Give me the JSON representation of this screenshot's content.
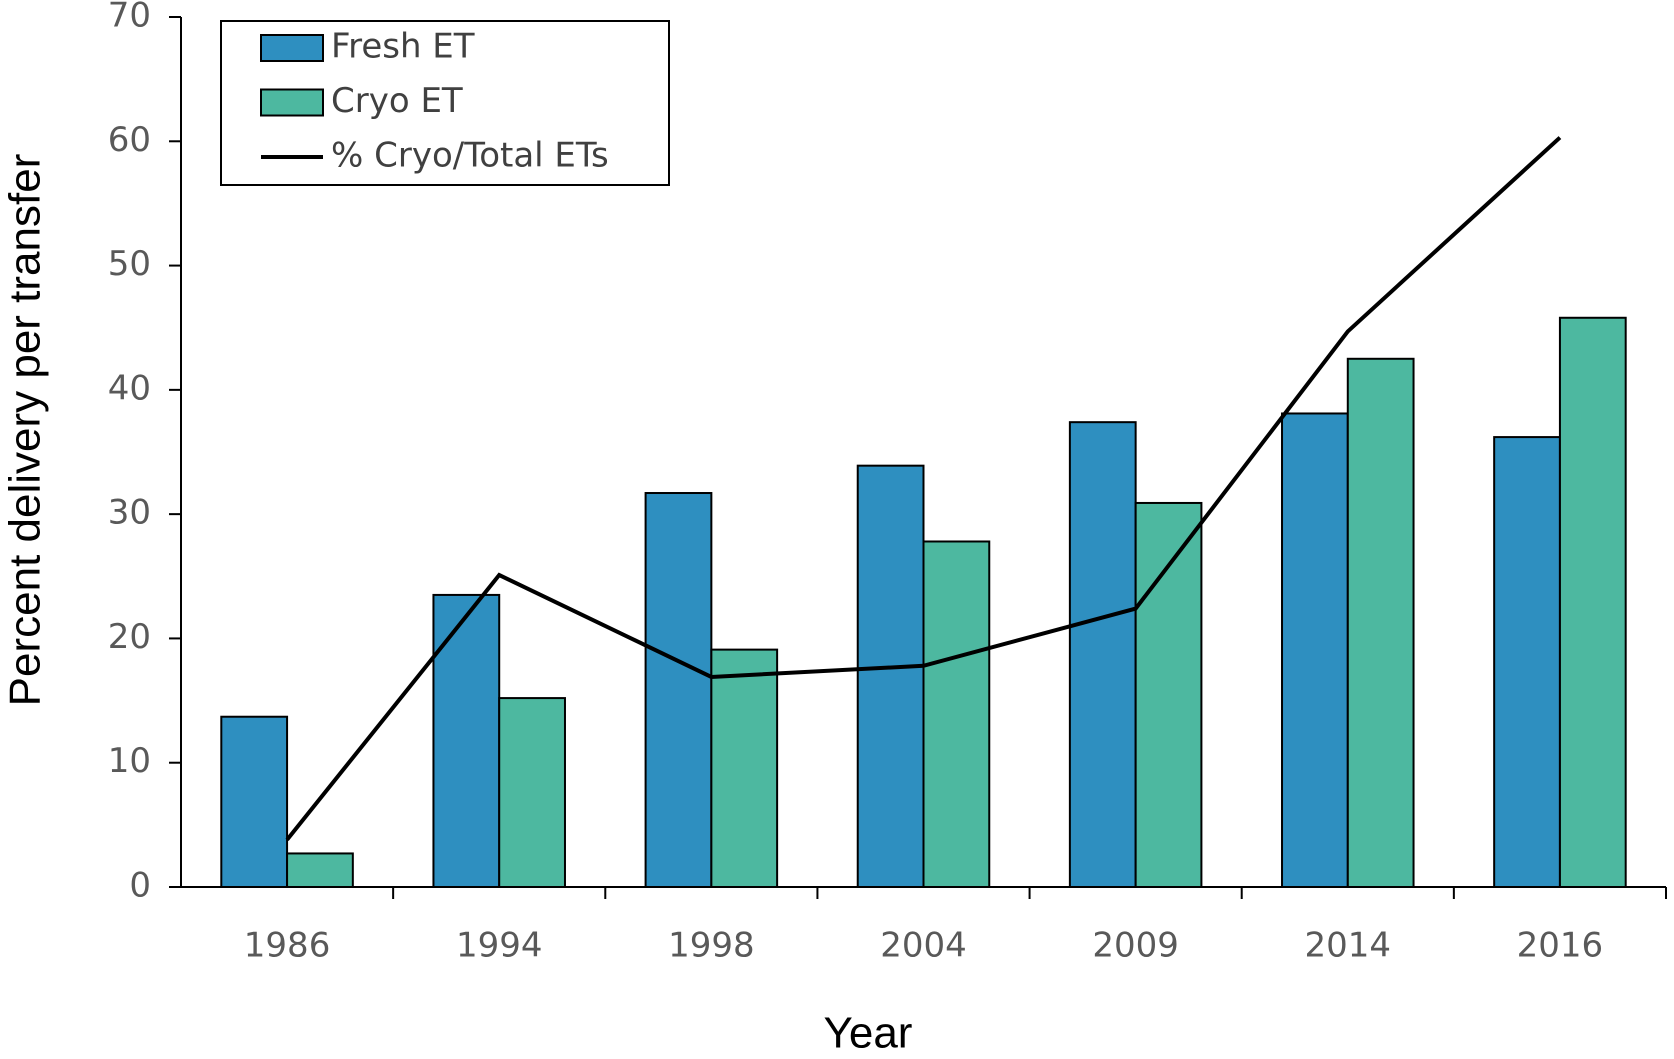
{
  "chart_data": {
    "type": "bar",
    "ylabel": "Percent delivery per transfer",
    "xlabel": "Year",
    "categories": [
      "1986",
      "1994",
      "1998",
      "2004",
      "2009",
      "2014",
      "2016"
    ],
    "series": [
      {
        "name": "Fresh ET",
        "type": "bar",
        "color": "#2e8fc0",
        "values": [
          13.7,
          23.5,
          31.7,
          33.9,
          37.4,
          38.1,
          36.2
        ]
      },
      {
        "name": "Cryo ET",
        "type": "bar",
        "color": "#4db8a0",
        "values": [
          2.7,
          15.2,
          19.1,
          27.8,
          30.9,
          42.5,
          45.8
        ]
      },
      {
        "name": "% Cryo/Total ETs",
        "type": "line",
        "color": "#000000",
        "values": [
          3.8,
          25.1,
          16.9,
          17.8,
          22.4,
          44.7,
          60.3
        ]
      }
    ],
    "ylim": [
      0,
      70
    ],
    "yticks": [
      0,
      10,
      20,
      30,
      40,
      50,
      60,
      70
    ],
    "legend": "upper left",
    "grid": false
  }
}
